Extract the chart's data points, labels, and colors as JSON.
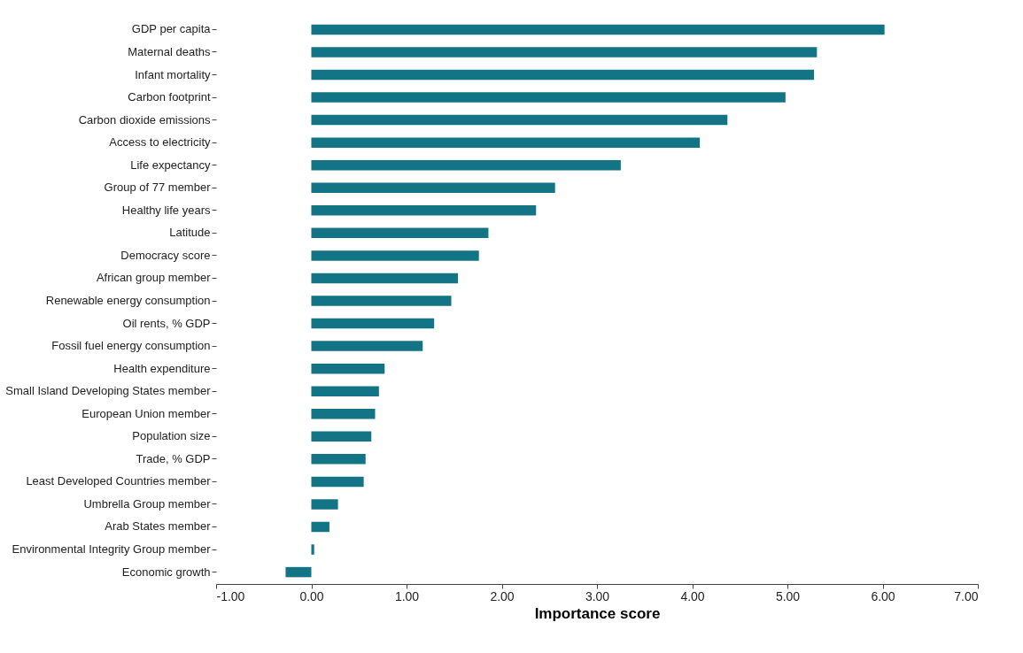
{
  "chart_data": {
    "type": "bar",
    "orientation": "horizontal",
    "xlabel": "Importance score",
    "categories": [
      "GDP per capita",
      "Maternal deaths",
      "Infant mortality",
      "Carbon footprint",
      "Carbon dioxide emissions",
      "Access to electricity",
      "Life expectancy",
      "Group of 77 member",
      "Healthy life years",
      "Latitude",
      "Democracy score",
      "African group member",
      "Renewable energy consumption",
      "Oil rents, % GDP",
      "Fossil fuel energy consumption",
      "Health expenditure",
      "Small Island Developing States member",
      "European Union member",
      "Population size",
      "Trade, % GDP",
      "Least Developed Countries member",
      "Umbrella Group member",
      "Arab States member",
      "Environmental Integrity Group member",
      "Economic growth"
    ],
    "values": [
      6.02,
      5.31,
      5.28,
      4.98,
      4.37,
      4.08,
      3.25,
      2.56,
      2.36,
      1.86,
      1.76,
      1.54,
      1.47,
      1.29,
      1.17,
      0.77,
      0.71,
      0.67,
      0.63,
      0.57,
      0.55,
      0.28,
      0.19,
      0.03,
      -0.27
    ],
    "color": "#127484",
    "xlim": [
      -1,
      7
    ],
    "xticks": [
      {
        "value": -1,
        "label": "-1.00"
      },
      {
        "value": 0,
        "label": "0.00"
      },
      {
        "value": 1,
        "label": "1.00"
      },
      {
        "value": 2,
        "label": "2.00"
      },
      {
        "value": 3,
        "label": "3.00"
      },
      {
        "value": 4,
        "label": "4.00"
      },
      {
        "value": 5,
        "label": "5.00"
      },
      {
        "value": 6,
        "label": "6.00"
      },
      {
        "value": 7,
        "label": "7.00"
      }
    ],
    "grid": false
  }
}
